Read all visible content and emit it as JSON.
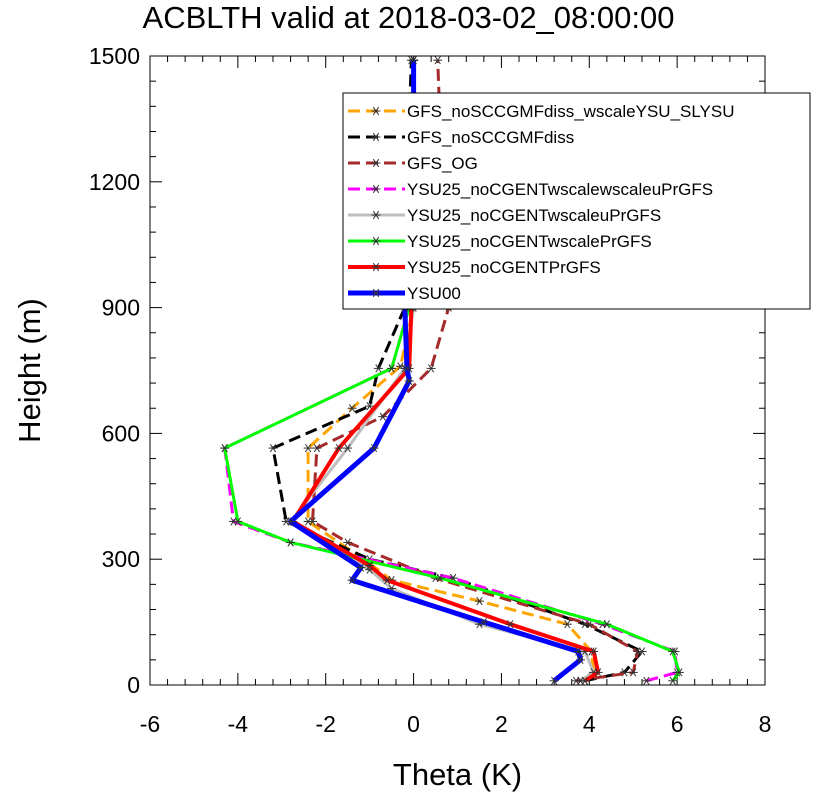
{
  "chart_data": {
    "type": "line",
    "title": "ACBLTH valid at 2018-03-02_08:00:00",
    "xlabel": "Theta (K)",
    "ylabel": "Height (m)",
    "xlim": [
      -6,
      8
    ],
    "ylim": [
      0,
      1500
    ],
    "xticks": [
      -6,
      -4,
      -2,
      0,
      2,
      4,
      6,
      8
    ],
    "yticks": [
      0,
      300,
      600,
      900,
      1200,
      1500
    ],
    "grid": false,
    "legend_position": "top-right",
    "series": [
      {
        "name": "GFS_noSCCGMFdiss_wscaleYSU_SLYSU",
        "color": "#ffa500",
        "dash": "12,6",
        "width": 3,
        "points": [
          [
            3.8,
            10
          ],
          [
            4.1,
            30
          ],
          [
            4.05,
            80
          ],
          [
            3.5,
            145
          ],
          [
            1.5,
            200
          ],
          [
            -0.5,
            250
          ],
          [
            -1.0,
            290
          ],
          [
            -2.4,
            390
          ],
          [
            -2.4,
            565
          ],
          [
            -1.4,
            660
          ],
          [
            -0.3,
            760
          ],
          [
            0.0,
            900
          ],
          [
            0.0,
            1050
          ],
          [
            0.0,
            1200
          ],
          [
            0.0,
            1350
          ],
          [
            0.0,
            1490
          ]
        ]
      },
      {
        "name": "GFS_noSCCGMFdiss",
        "color": "#000000",
        "dash": "12,6",
        "width": 3,
        "points": [
          [
            3.9,
            10
          ],
          [
            4.8,
            30
          ],
          [
            5.2,
            80
          ],
          [
            3.9,
            145
          ],
          [
            0.9,
            255
          ],
          [
            -1.0,
            300
          ],
          [
            -2.9,
            390
          ],
          [
            -3.2,
            565
          ],
          [
            -1.0,
            665
          ],
          [
            -0.8,
            755
          ],
          [
            -0.2,
            900
          ],
          [
            -0.2,
            1050
          ],
          [
            -0.1,
            1200
          ],
          [
            -0.1,
            1350
          ],
          [
            -0.05,
            1490
          ]
        ]
      },
      {
        "name": "GFS_OG",
        "color": "#a52a2a",
        "dash": "12,6",
        "width": 3,
        "points": [
          [
            3.7,
            10
          ],
          [
            5.0,
            30
          ],
          [
            5.1,
            80
          ],
          [
            4.0,
            145
          ],
          [
            0.5,
            255
          ],
          [
            -1.5,
            340
          ],
          [
            -2.3,
            390
          ],
          [
            -2.2,
            565
          ],
          [
            -0.7,
            640
          ],
          [
            0.4,
            755
          ],
          [
            0.8,
            900
          ],
          [
            0.7,
            1050
          ],
          [
            0.6,
            1200
          ],
          [
            0.6,
            1350
          ],
          [
            0.55,
            1490
          ]
        ]
      },
      {
        "name": "YSU25_noCGENTwscalewscaleuPrGFS",
        "color": "#ff00ff",
        "dash": "12,6",
        "width": 3,
        "points": [
          [
            5.3,
            10
          ],
          [
            6.0,
            30
          ],
          [
            5.95,
            80
          ],
          [
            4.3,
            145
          ],
          [
            0.9,
            255
          ],
          [
            -2.8,
            340
          ],
          [
            -4.1,
            390
          ],
          [
            -4.3,
            565
          ],
          [
            -0.5,
            755
          ],
          [
            -0.1,
            900
          ],
          [
            -0.05,
            1050
          ],
          [
            0.0,
            1200
          ],
          [
            0.0,
            1350
          ],
          [
            0.0,
            1490
          ]
        ]
      },
      {
        "name": "YSU25_noCGENTwscaleuPrGFS",
        "color": "#bebebe",
        "dash": "",
        "width": 3,
        "points": [
          [
            3.8,
            10
          ],
          [
            4.1,
            30
          ],
          [
            3.9,
            80
          ],
          [
            1.5,
            145
          ],
          [
            -0.5,
            230
          ],
          [
            -1.0,
            275
          ],
          [
            -2.8,
            390
          ],
          [
            -1.5,
            565
          ],
          [
            -0.2,
            755
          ],
          [
            0.0,
            900
          ],
          [
            0.0,
            1050
          ],
          [
            0.0,
            1200
          ],
          [
            0.0,
            1350
          ],
          [
            0.0,
            1490
          ]
        ]
      },
      {
        "name": "YSU25_noCGENTwscalePrGFS",
        "color": "#00ff00",
        "dash": "",
        "width": 3,
        "points": [
          [
            5.9,
            10
          ],
          [
            6.05,
            30
          ],
          [
            5.9,
            80
          ],
          [
            4.4,
            145
          ],
          [
            0.6,
            255
          ],
          [
            -2.8,
            340
          ],
          [
            -4.0,
            390
          ],
          [
            -4.3,
            565
          ],
          [
            -0.5,
            755
          ],
          [
            -0.1,
            900
          ],
          [
            0.0,
            1050
          ],
          [
            0.0,
            1200
          ],
          [
            0.0,
            1350
          ],
          [
            0.0,
            1490
          ]
        ]
      },
      {
        "name": "YSU25_noCGENTPrGFS",
        "color": "#ff0000",
        "dash": "",
        "width": 4,
        "points": [
          [
            3.9,
            10
          ],
          [
            4.2,
            30
          ],
          [
            4.1,
            80
          ],
          [
            2.2,
            145
          ],
          [
            -0.6,
            250
          ],
          [
            -1.0,
            285
          ],
          [
            -2.75,
            390
          ],
          [
            -1.7,
            565
          ],
          [
            -0.1,
            755
          ],
          [
            -0.05,
            900
          ],
          [
            0.0,
            1050
          ],
          [
            0.0,
            1200
          ],
          [
            0.0,
            1350
          ],
          [
            0.0,
            1490
          ]
        ]
      },
      {
        "name": "YSU00",
        "color": "#0000ff",
        "dash": "",
        "width": 5,
        "points": [
          [
            3.2,
            10
          ],
          [
            3.8,
            60
          ],
          [
            3.75,
            80
          ],
          [
            1.6,
            150
          ],
          [
            -1.4,
            250
          ],
          [
            -1.2,
            280
          ],
          [
            -2.8,
            390
          ],
          [
            -0.9,
            565
          ],
          [
            -0.1,
            725
          ],
          [
            -0.15,
            755
          ],
          [
            -0.2,
            900
          ],
          [
            -0.1,
            1050
          ],
          [
            0.0,
            1200
          ],
          [
            0.0,
            1350
          ],
          [
            0.0,
            1490
          ]
        ]
      }
    ]
  }
}
